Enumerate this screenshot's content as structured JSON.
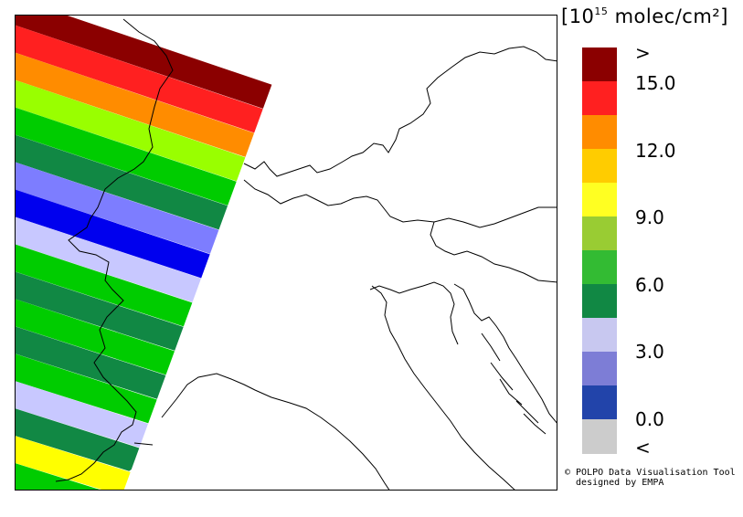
{
  "legend": {
    "title_prefix": "[10",
    "title_sup": "15",
    "title_suffix": " molec/cm²]",
    "colors": [
      "#8b0000",
      "#ff2020",
      "#ff8c00",
      "#ffcc00",
      "#ffff22",
      "#99cc33",
      "#33bb33",
      "#118844",
      "#c8c8f0",
      "#7d7dd6",
      "#2244aa",
      "#cccccc"
    ],
    "labels": [
      ">",
      "15.0",
      "12.0",
      "9.0",
      "6.0",
      "3.0",
      "0.0",
      "<"
    ]
  },
  "credit": {
    "line1": "© POLPO Data Visualisation Tool",
    "line2": "  designed by EMPA"
  },
  "swath": {
    "bands": [
      {
        "color": "#8b0000"
      },
      {
        "color": "#ff2020"
      },
      {
        "color": "#ff8c00"
      },
      {
        "color": "#99ff00"
      },
      {
        "color": "#00cc00"
      },
      {
        "color": "#118844"
      },
      {
        "color": "#7d7dff"
      },
      {
        "color": "#0000ee"
      },
      {
        "color": "#c8c8ff"
      },
      {
        "color": "#00cc00"
      },
      {
        "color": "#118844"
      },
      {
        "color": "#00cc00"
      },
      {
        "color": "#118844"
      },
      {
        "color": "#00cc00"
      },
      {
        "color": "#c8c8ff"
      },
      {
        "color": "#118844"
      },
      {
        "color": "#ffff00"
      },
      {
        "color": "#00cc00"
      },
      {
        "color": "#00cc00"
      }
    ]
  }
}
